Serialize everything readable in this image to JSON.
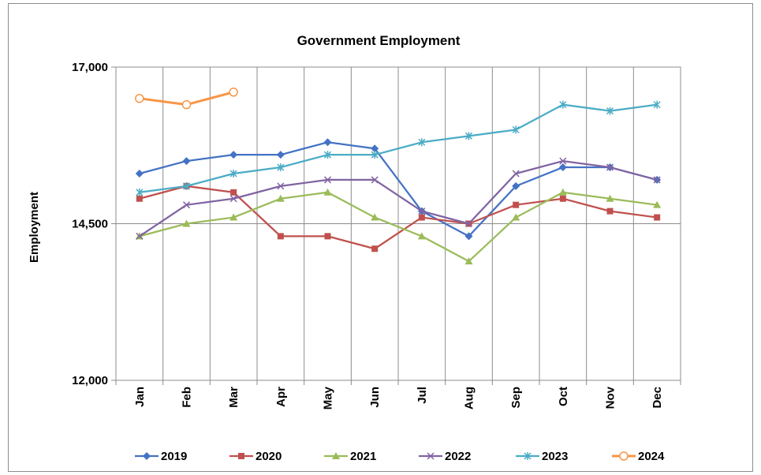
{
  "chart_data": {
    "type": "line",
    "title": "Government Employment",
    "ylabel": "Employment",
    "xlabel": "",
    "ylim": [
      12000,
      17000
    ],
    "yticks": [
      12000,
      14500,
      17000
    ],
    "ytick_labels": [
      "12,000",
      "14,500",
      "17,000"
    ],
    "categories": [
      "Jan",
      "Feb",
      "Mar",
      "Apr",
      "May",
      "Jun",
      "Jul",
      "Aug",
      "Sep",
      "Oct",
      "Nov",
      "Dec"
    ],
    "grid": "vertical and horizontal major gridlines",
    "legend_position": "bottom",
    "series": [
      {
        "name": "2019",
        "color": "#4472c4",
        "marker": "diamond",
        "values": [
          15300,
          15500,
          15600,
          15600,
          15800,
          15700,
          14700,
          14300,
          15100,
          15400,
          15400,
          15200
        ]
      },
      {
        "name": "2020",
        "color": "#c0504d",
        "marker": "square",
        "values": [
          14900,
          15100,
          15000,
          14300,
          14300,
          14100,
          14600,
          14500,
          14800,
          14900,
          14700,
          14600
        ]
      },
      {
        "name": "2021",
        "color": "#9bbb59",
        "marker": "triangle",
        "values": [
          14300,
          14500,
          14600,
          14900,
          15000,
          14600,
          14300,
          13900,
          14600,
          15000,
          14900,
          14800
        ]
      },
      {
        "name": "2022",
        "color": "#8064a2",
        "marker": "x",
        "values": [
          14300,
          14800,
          14900,
          15100,
          15200,
          15200,
          14700,
          14500,
          15300,
          15500,
          15400,
          15200
        ]
      },
      {
        "name": "2023",
        "color": "#4bacc6",
        "marker": "star",
        "values": [
          15000,
          15100,
          15300,
          15400,
          15600,
          15600,
          15800,
          15900,
          16000,
          16400,
          16300,
          16400
        ]
      },
      {
        "name": "2024",
        "color": "#f79646",
        "marker": "circle",
        "values": [
          16500,
          16400,
          16600,
          null,
          null,
          null,
          null,
          null,
          null,
          null,
          null,
          null
        ]
      }
    ]
  }
}
